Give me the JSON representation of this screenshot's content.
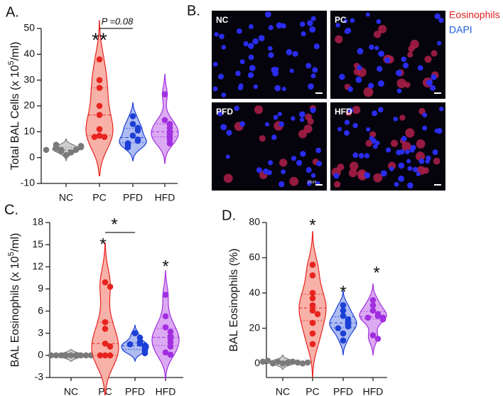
{
  "chart_data": [
    {
      "type": "violin",
      "panel": "A.",
      "ylabel": [
        "Total BAL Cells  (x 10",
        "5",
        "/ml)"
      ],
      "categories": [
        "NC",
        "PC",
        "PFD",
        "HFD"
      ],
      "colors": [
        "#7a7a7a",
        "#e8231f",
        "#1c3fd6",
        "#a12ee0"
      ],
      "fills": [
        "#d0d0d0",
        "#f7b1a8",
        "#aebcf2",
        "#dcaaf2"
      ],
      "points": [
        [
          1,
          2,
          2.5,
          3,
          3,
          3.5,
          4,
          4,
          4.5,
          5,
          3
        ],
        [
          38,
          30,
          27,
          20,
          16.5,
          11,
          8.5,
          8,
          8
        ],
        [
          16,
          13,
          11.5,
          10.5,
          8.5,
          7,
          6.5,
          5.5,
          5,
          4
        ],
        [
          24.5,
          14.5,
          13,
          11.5,
          10,
          9,
          8,
          7,
          5.5
        ]
      ],
      "ylim": [
        -10,
        50
      ],
      "yticks": [
        -10,
        0,
        10,
        20,
        30,
        40,
        50
      ],
      "annotations": [
        "**",
        "P =0.08"
      ]
    },
    {
      "type": "violin",
      "panel": "C.",
      "ylabel": [
        "BAL Eosinophils  (x 10",
        "5",
        "/ml)"
      ],
      "categories": [
        "NC",
        "PC",
        "PFD",
        "HFD"
      ],
      "colors": [
        "#7a7a7a",
        "#e8231f",
        "#1c3fd6",
        "#a12ee0"
      ],
      "fills": [
        "#d0d0d0",
        "#f7b1a8",
        "#aebcf2",
        "#dcaaf2"
      ],
      "points": [
        [
          0,
          0,
          0,
          0,
          0,
          0,
          0,
          0,
          0,
          0
        ],
        [
          9.9,
          9.3,
          4.5,
          3.6,
          1.6,
          1.2,
          0,
          0,
          0
        ],
        [
          3,
          2.4,
          1.8,
          1.6,
          1.5,
          1.3,
          1.1,
          0.9,
          0.7,
          0.5,
          0.3
        ],
        [
          8.2,
          5.3,
          3.8,
          3.2,
          2.6,
          2.3,
          1.8,
          1.2,
          0.4,
          0.1
        ]
      ],
      "ylim": [
        -3,
        18
      ],
      "yticks": [
        -3,
        0,
        3,
        6,
        9,
        12,
        15,
        18
      ],
      "annotations": [
        "*",
        "*",
        "*"
      ]
    },
    {
      "type": "violin",
      "panel": "D.",
      "ylabel": [
        "BAL Eosinophils (%)"
      ],
      "categories": [
        "NC",
        "PC",
        "PFD",
        "HFD"
      ],
      "colors": [
        "#7a7a7a",
        "#e8231f",
        "#1c3fd6",
        "#a12ee0"
      ],
      "fills": [
        "#d0d0d0",
        "#f7b1a8",
        "#aebcf2",
        "#dcaaf2"
      ],
      "points": [
        [
          0,
          0.5,
          1,
          1,
          0,
          0.5,
          1.5,
          0,
          1,
          0.5
        ],
        [
          56,
          50,
          40,
          37,
          33,
          30,
          28,
          23,
          17,
          11
        ],
        [
          33,
          30,
          27,
          25,
          24,
          22,
          21,
          20,
          17,
          13
        ],
        [
          36,
          33,
          30,
          28,
          27,
          26,
          26,
          25,
          16,
          14
        ]
      ],
      "ylim": [
        -8,
        80
      ],
      "yticks": [
        0,
        20,
        40,
        60,
        80
      ],
      "annotations": [
        "*",
        "*",
        "*"
      ]
    }
  ],
  "panel_b": {
    "label": "B.",
    "images": [
      "NC",
      "PC",
      "PFD",
      "HFD"
    ],
    "scale_bar": "20um",
    "legend": [
      {
        "name": "Eosinophils",
        "color": "#e02020"
      },
      {
        "name": "DAPI",
        "color": "#1a5ce0"
      }
    ]
  }
}
